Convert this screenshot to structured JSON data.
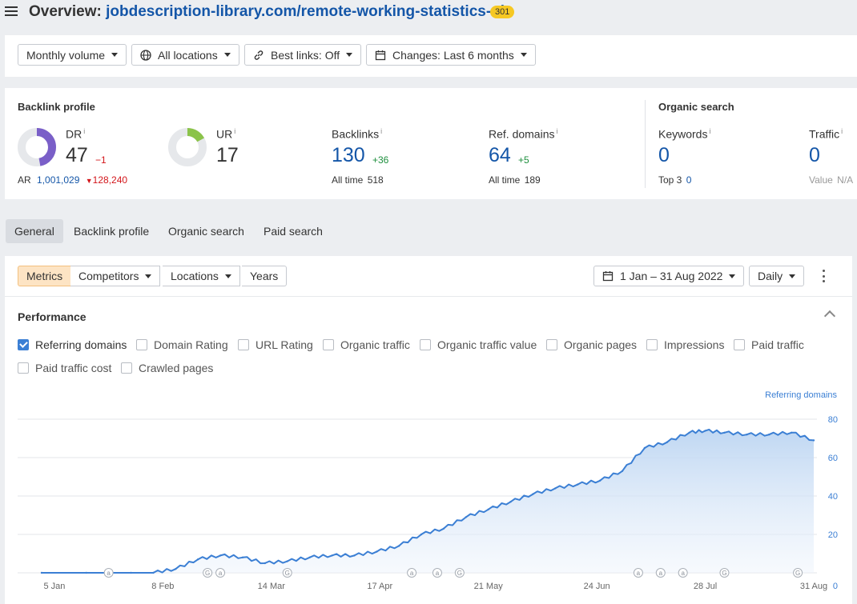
{
  "header": {
    "menu_icon": "hamburger-icon",
    "title_prefix": "Overview:",
    "url": "jobdescription-library.com/remote-working-statistics-uk",
    "status_badge": "301"
  },
  "filters": {
    "volume": "Monthly volume",
    "locations": "All locations",
    "best_links": "Best links: Off",
    "changes": "Changes: Last 6 months"
  },
  "backlink_profile": {
    "section_label": "Backlink profile",
    "dr": {
      "label": "DR",
      "value": "47",
      "delta": "−1",
      "ring_fraction": 0.47,
      "color": "#7a5fc8"
    },
    "ar": {
      "label": "AR",
      "value": "1,001,029",
      "delta": "128,240"
    },
    "ur": {
      "label": "UR",
      "value": "17",
      "ring_fraction": 0.17,
      "color": "#8bc34a"
    },
    "backlinks": {
      "label": "Backlinks",
      "value": "130",
      "delta": "+36",
      "alltime_label": "All time",
      "alltime": "518"
    },
    "ref_domains": {
      "label": "Ref. domains",
      "value": "64",
      "delta": "+5",
      "alltime_label": "All time",
      "alltime": "189"
    }
  },
  "organic_search": {
    "section_label": "Organic search",
    "keywords": {
      "label": "Keywords",
      "value": "0",
      "top3_label": "Top 3",
      "top3": "0"
    },
    "traffic": {
      "label": "Traffic",
      "value": "0",
      "value_label": "Value",
      "value_val": "N/A"
    }
  },
  "tabs": [
    "General",
    "Backlink profile",
    "Organic search",
    "Paid search"
  ],
  "toolbar": {
    "segments": [
      "Metrics",
      "Competitors",
      "Locations",
      "Years"
    ],
    "date_range": "1 Jan – 31 Aug 2022",
    "granularity": "Daily"
  },
  "performance": {
    "title": "Performance",
    "metrics": [
      {
        "label": "Referring domains",
        "checked": true
      },
      {
        "label": "Domain Rating",
        "checked": false
      },
      {
        "label": "URL Rating",
        "checked": false
      },
      {
        "label": "Organic traffic",
        "checked": false
      },
      {
        "label": "Organic traffic value",
        "checked": false
      },
      {
        "label": "Organic pages",
        "checked": false
      },
      {
        "label": "Impressions",
        "checked": false
      },
      {
        "label": "Paid traffic",
        "checked": false
      },
      {
        "label": "Paid traffic cost",
        "checked": false
      },
      {
        "label": "Crawled pages",
        "checked": false
      }
    ]
  },
  "chart_data": {
    "type": "area",
    "series": [
      {
        "name": "Referring domains",
        "color": "#3b7fd4",
        "x": [
          "1 Jan",
          "15 Jan",
          "29 Jan",
          "5 Feb",
          "12 Feb",
          "19 Feb",
          "26 Feb",
          "5 Mar",
          "12 Mar",
          "19 Mar",
          "26 Mar",
          "2 Apr",
          "9 Apr",
          "16 Apr",
          "23 Apr",
          "30 Apr",
          "7 May",
          "14 May",
          "21 May",
          "28 May",
          "4 Jun",
          "11 Jun",
          "18 Jun",
          "25 Jun",
          "2 Jul",
          "9 Jul",
          "16 Jul",
          "23 Jul",
          "28 Jul",
          "3 Aug",
          "10 Aug",
          "17 Aug",
          "24 Aug",
          "31 Aug"
        ],
        "values": [
          0,
          0,
          0,
          0,
          2,
          7,
          9,
          8,
          5,
          6,
          8,
          9,
          9,
          11,
          14,
          20,
          23,
          29,
          33,
          37,
          41,
          44,
          46,
          48,
          53,
          65,
          68,
          73,
          74,
          73,
          72,
          72,
          73,
          69
        ]
      }
    ],
    "y_axis_label": "Referring domains",
    "ylim": [
      0,
      80
    ],
    "y_ticks": [
      0,
      20,
      40,
      60,
      80
    ],
    "x_ticks": [
      "5 Jan",
      "8 Feb",
      "14 Mar",
      "17 Apr",
      "21 May",
      "24 Jun",
      "28 Jul",
      "31 Aug"
    ],
    "annotations": [
      {
        "x": "22 Jan",
        "label": "a"
      },
      {
        "x": "22 Feb",
        "label": "G"
      },
      {
        "x": "26 Feb",
        "label": "a"
      },
      {
        "x": "19 Mar",
        "label": "G"
      },
      {
        "x": "27 Apr",
        "label": "a"
      },
      {
        "x": "5 May",
        "label": "a"
      },
      {
        "x": "12 May",
        "label": "G"
      },
      {
        "x": "7 Jul",
        "label": "a"
      },
      {
        "x": "14 Jul",
        "label": "a"
      },
      {
        "x": "21 Jul",
        "label": "a"
      },
      {
        "x": "3 Aug",
        "label": "G"
      },
      {
        "x": "26 Aug",
        "label": "G"
      }
    ],
    "grid": true
  }
}
